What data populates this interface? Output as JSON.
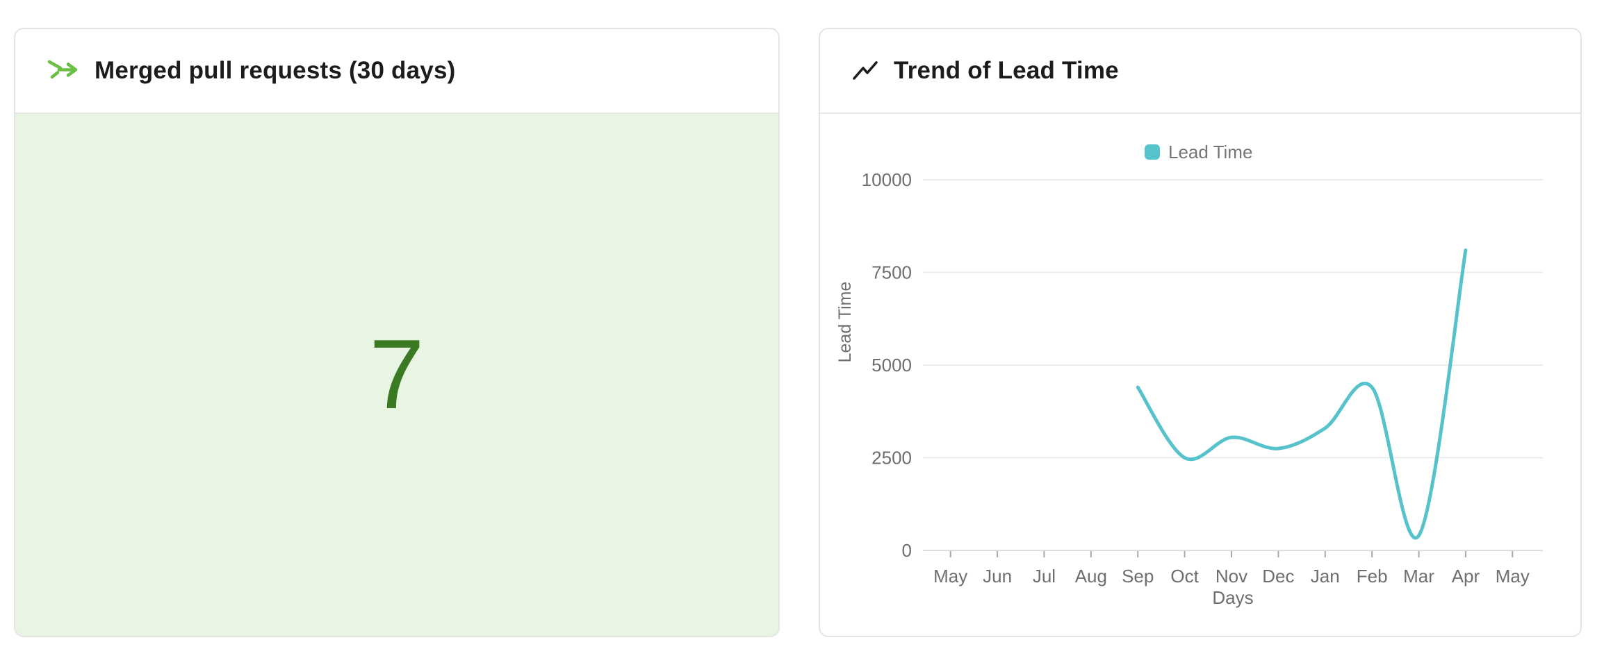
{
  "cards": {
    "merged_prs": {
      "title": "Merged pull requests (30 days)",
      "value": "7",
      "icon": "merge-arrow-icon",
      "icon_color": "#6abf45",
      "value_color": "#3a7a23",
      "body_bg": "#e9f5e3"
    },
    "lead_time_trend": {
      "title": "Trend of Lead Time",
      "icon": "trend-up-icon",
      "icon_color": "#1d1d1d"
    }
  },
  "chart_data": {
    "type": "line",
    "title": "Trend of Lead Time",
    "xlabel": "Days",
    "ylabel": "Lead Time",
    "categories": [
      "May",
      "Jun",
      "Jul",
      "Aug",
      "Sep",
      "Oct",
      "Nov",
      "Dec",
      "Jan",
      "Feb",
      "Mar",
      "Apr",
      "May"
    ],
    "series": [
      {
        "name": "Lead Time",
        "color": "#56c2cc",
        "values": [
          null,
          null,
          null,
          null,
          4400,
          2500,
          3050,
          2750,
          3300,
          4400,
          400,
          8100,
          null
        ]
      }
    ],
    "ylim": [
      0,
      10000
    ],
    "yticks": [
      0,
      2500,
      5000,
      7500,
      10000
    ],
    "grid": true,
    "smooth": true,
    "legend_position": "top-center",
    "legend": [
      {
        "label": "Lead Time",
        "swatch_color": "#56c2cc"
      }
    ],
    "text_color": "#6e6e6e",
    "gridline_color": "#ebebeb",
    "axis_line_color": "#dcdcdc",
    "tick_color": "#a9a9a9"
  }
}
